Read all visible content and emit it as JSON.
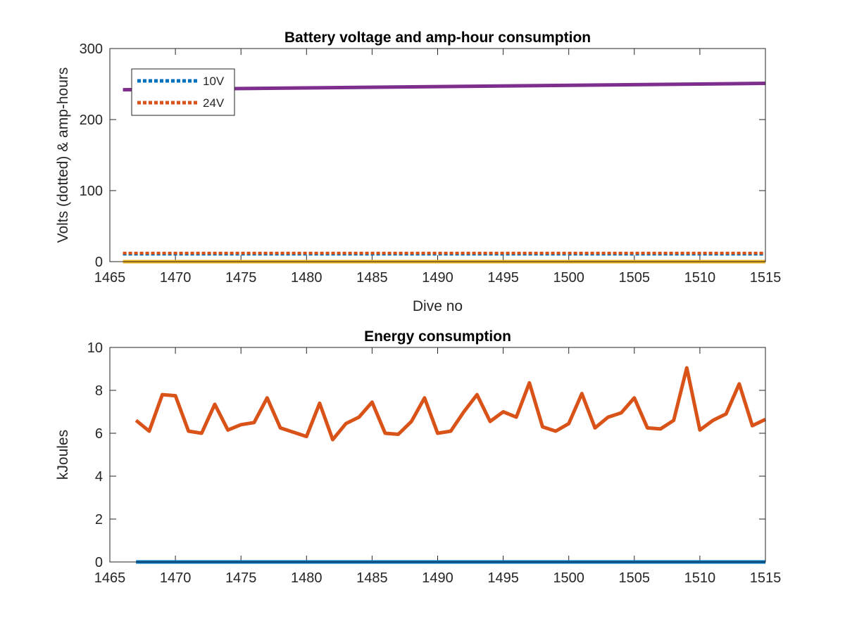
{
  "chart_data": [
    {
      "type": "line",
      "title": "Battery voltage and amp-hour consumption",
      "xlabel": "Dive no",
      "ylabel": "Volts (dotted) & amp-hours",
      "xlim": [
        1465,
        1515
      ],
      "ylim": [
        0,
        300
      ],
      "xticks": [
        1465,
        1470,
        1475,
        1480,
        1485,
        1490,
        1495,
        1500,
        1505,
        1510,
        1515
      ],
      "yticks": [
        0,
        100,
        200,
        300
      ],
      "legend": {
        "location": "top-left",
        "entries": [
          "10V",
          "24V"
        ]
      },
      "series": [
        {
          "name": "10V",
          "style": "dotted",
          "color": "#0072BD",
          "x": [
            1466,
            1515
          ],
          "y": [
            10.5,
            10.5
          ]
        },
        {
          "name": "24V",
          "style": "dotted",
          "color": "#D95319",
          "x": [
            1466,
            1515
          ],
          "y": [
            12,
            12
          ]
        },
        {
          "style": "solid",
          "color": "#EDB120",
          "x": [
            1466,
            1515
          ],
          "y": [
            0,
            0
          ]
        },
        {
          "style": "solid",
          "color": "#7E2F8E",
          "x": [
            1466,
            1515
          ],
          "y": [
            242,
            251
          ]
        }
      ]
    },
    {
      "type": "line",
      "title": "Energy consumption",
      "xlabel": "",
      "ylabel": "kJoules",
      "xlim": [
        1465,
        1515
      ],
      "ylim": [
        0,
        10
      ],
      "xticks": [
        1465,
        1470,
        1475,
        1480,
        1485,
        1490,
        1495,
        1500,
        1505,
        1510,
        1515
      ],
      "yticks": [
        0,
        2,
        4,
        6,
        8,
        10
      ],
      "series": [
        {
          "style": "solid",
          "color": "#D95319",
          "x": [
            1467,
            1468,
            1469,
            1470,
            1471,
            1472,
            1473,
            1474,
            1475,
            1476,
            1477,
            1478,
            1479,
            1480,
            1481,
            1482,
            1483,
            1484,
            1485,
            1486,
            1487,
            1488,
            1489,
            1490,
            1491,
            1492,
            1493,
            1494,
            1495,
            1496,
            1497,
            1498,
            1499,
            1500,
            1501,
            1502,
            1503,
            1504,
            1505,
            1506,
            1507,
            1508,
            1509,
            1510,
            1511,
            1512,
            1513,
            1514,
            1515
          ],
          "y": [
            6.6,
            6.1,
            7.8,
            7.75,
            6.1,
            6.0,
            7.35,
            6.15,
            6.4,
            6.5,
            7.65,
            6.25,
            6.05,
            5.85,
            7.4,
            5.7,
            6.45,
            6.75,
            7.45,
            6.0,
            5.95,
            6.55,
            7.65,
            6.0,
            6.1,
            7.0,
            7.8,
            6.55,
            7.0,
            6.75,
            8.35,
            6.3,
            6.1,
            6.45,
            7.85,
            6.25,
            6.75,
            6.95,
            7.65,
            6.25,
            6.2,
            6.6,
            9.05,
            6.15,
            6.6,
            6.9,
            8.3,
            6.35,
            6.65
          ]
        },
        {
          "style": "solid",
          "color": "#0072BD",
          "x": [
            1467,
            1515
          ],
          "y": [
            0,
            0
          ]
        }
      ]
    }
  ]
}
